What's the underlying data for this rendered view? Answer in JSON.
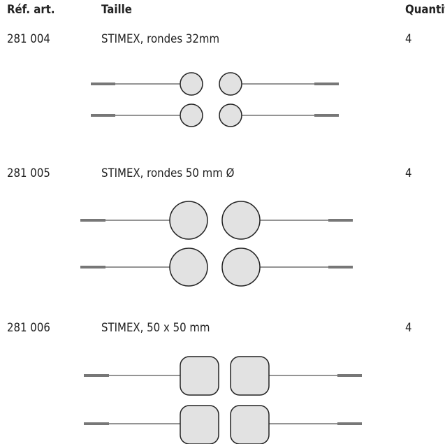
{
  "header": {
    "columns": [
      "Réf. art.",
      "Taille",
      "Quantité"
    ]
  },
  "rows": [
    {
      "ref": "281 004",
      "size": "STIMEX, rondes 32mm",
      "qty": "4"
    },
    {
      "ref": "281 005",
      "size": "STIMEX, rondes 50 mm Ø",
      "qty": "4"
    },
    {
      "ref": "281 006",
      "size": "STIMEX, 50 x 50 mm",
      "qty": "4"
    }
  ]
}
